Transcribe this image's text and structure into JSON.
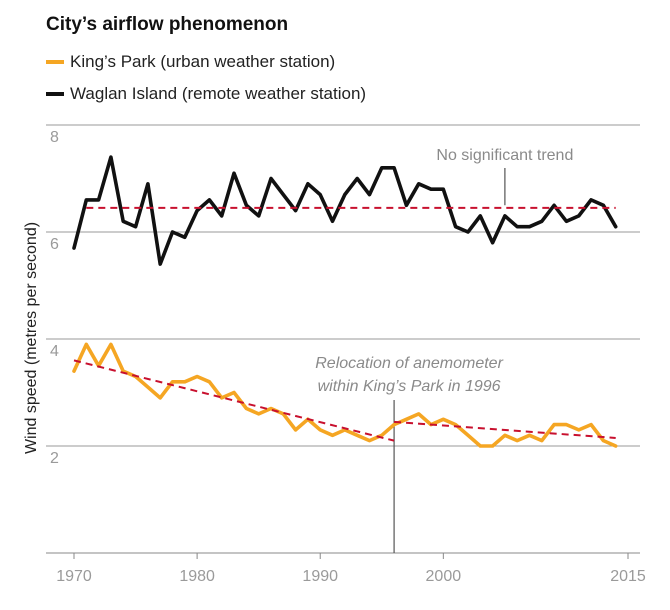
{
  "chart_data": {
    "type": "line",
    "title": "City’s airflow phenomenon",
    "ylabel": "Wind speed (metres per second)",
    "xlabel": "",
    "xlim": [
      1970,
      2015
    ],
    "ylim": [
      0,
      8
    ],
    "x_ticks": [
      "1970",
      "1980",
      "1990",
      "2000",
      "2015"
    ],
    "y_ticks": [
      "2",
      "4",
      "6",
      "8"
    ],
    "legend_position": "top-left",
    "colors": {
      "kings_park": "#f5a623",
      "waglan": "#111111",
      "trend": "#c8102e",
      "grid": "#9a9a9a"
    },
    "series": [
      {
        "name": "King’s Park (urban weather station)",
        "x": [
          1970,
          1971,
          1972,
          1973,
          1974,
          1975,
          1976,
          1977,
          1978,
          1979,
          1980,
          1981,
          1982,
          1983,
          1984,
          1985,
          1986,
          1987,
          1988,
          1989,
          1990,
          1991,
          1992,
          1993,
          1994,
          1995,
          1996,
          1997,
          1998,
          1999,
          2000,
          2001,
          2002,
          2003,
          2004,
          2005,
          2006,
          2007,
          2008,
          2009,
          2010,
          2011,
          2012,
          2013,
          2014
        ],
        "y": [
          3.4,
          3.9,
          3.5,
          3.9,
          3.4,
          3.3,
          3.1,
          2.9,
          3.2,
          3.2,
          3.3,
          3.2,
          2.9,
          3.0,
          2.7,
          2.6,
          2.7,
          2.6,
          2.3,
          2.5,
          2.3,
          2.2,
          2.3,
          2.2,
          2.1,
          2.2,
          2.4,
          2.5,
          2.6,
          2.4,
          2.5,
          2.4,
          2.2,
          2.0,
          2.0,
          2.2,
          2.1,
          2.2,
          2.1,
          2.4,
          2.4,
          2.3,
          2.4,
          2.1,
          2.0
        ]
      },
      {
        "name": "Waglan Island (remote weather station)",
        "x": [
          1970,
          1971,
          1972,
          1973,
          1974,
          1975,
          1976,
          1977,
          1978,
          1979,
          1980,
          1981,
          1982,
          1983,
          1984,
          1985,
          1986,
          1987,
          1988,
          1989,
          1990,
          1991,
          1992,
          1993,
          1994,
          1995,
          1996,
          1997,
          1998,
          1999,
          2000,
          2001,
          2002,
          2003,
          2004,
          2005,
          2006,
          2007,
          2008,
          2009,
          2010,
          2011,
          2012,
          2013,
          2014
        ],
        "y": [
          5.7,
          6.6,
          6.6,
          7.4,
          6.2,
          6.1,
          6.9,
          5.4,
          6.0,
          5.9,
          6.4,
          6.6,
          6.3,
          7.1,
          6.5,
          6.3,
          7.0,
          6.7,
          6.4,
          6.9,
          6.7,
          6.2,
          6.7,
          7.0,
          6.7,
          7.2,
          7.2,
          6.5,
          6.9,
          6.8,
          6.8,
          6.1,
          6.0,
          6.3,
          5.8,
          6.3,
          6.1,
          6.1,
          6.2,
          6.5,
          6.2,
          6.3,
          6.6,
          6.5,
          6.1
        ]
      }
    ],
    "trend_lines": [
      {
        "series": "Waglan Island (remote weather station)",
        "segments": [
          [
            1971,
            6.45,
            2014,
            6.45
          ]
        ]
      },
      {
        "series": "King’s Park (urban weather station)",
        "segments": [
          [
            1970,
            3.6,
            1996,
            2.1
          ],
          [
            1996,
            2.45,
            2014,
            2.15
          ]
        ]
      }
    ],
    "annotations": [
      {
        "id": "waglan-note",
        "text": "No significant trend",
        "x": 2005,
        "y": 6.5
      },
      {
        "id": "reloc-note",
        "lines": [
          "Relocation of anemometer",
          "within King’s Park in 1996"
        ],
        "x": 1996
      }
    ]
  }
}
